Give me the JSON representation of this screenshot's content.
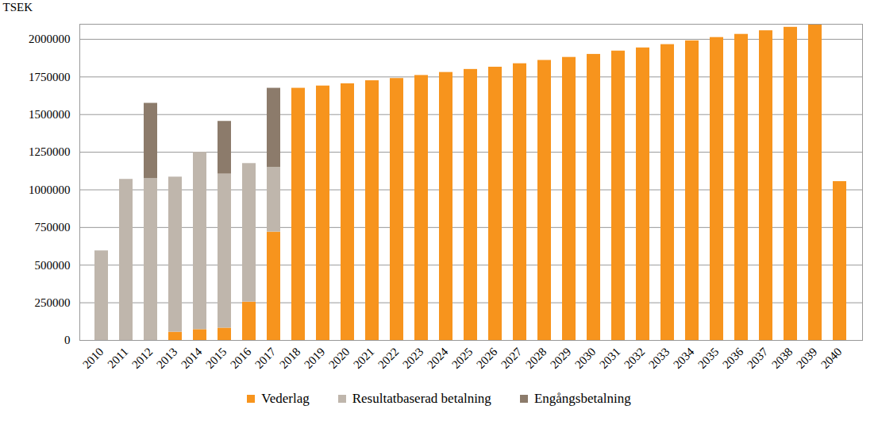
{
  "chart_data": {
    "type": "bar",
    "stacked": true,
    "grid": true,
    "legend": "bottom",
    "y_label": "TSEK",
    "categories": [
      "2010",
      "2011",
      "2012",
      "2013",
      "2014",
      "2015",
      "2016",
      "2017",
      "2018",
      "2019",
      "2020",
      "2021",
      "2022",
      "2023",
      "2024",
      "2025",
      "2026",
      "2027",
      "2028",
      "2029",
      "2030",
      "2031",
      "2032",
      "2033",
      "2034",
      "2035",
      "2036",
      "2037",
      "2038",
      "2039",
      "2040"
    ],
    "series": [
      {
        "name": "Vederlag",
        "color": "#F7941D",
        "values": [
          0,
          0,
          0,
          55000,
          72000,
          82000,
          255000,
          720000,
          1675000,
          1690000,
          1705000,
          1725000,
          1740000,
          1760000,
          1780000,
          1800000,
          1815000,
          1838000,
          1860000,
          1880000,
          1900000,
          1922000,
          1943000,
          1965000,
          1990000,
          2012000,
          2033000,
          2057000,
          2080000,
          2095000,
          1055000
        ]
      },
      {
        "name": "Resultatbaserad betalning",
        "color": "#BFB6AC",
        "values": [
          595000,
          1070000,
          1075000,
          1030000,
          1178000,
          1023000,
          920000,
          430000,
          0,
          0,
          0,
          0,
          0,
          0,
          0,
          0,
          0,
          0,
          0,
          0,
          0,
          0,
          0,
          0,
          0,
          0,
          0,
          0,
          0,
          0,
          0
        ]
      },
      {
        "name": "Engångsbetalning",
        "color": "#8C7B6B",
        "values": [
          0,
          0,
          500000,
          0,
          0,
          350000,
          0,
          525000,
          0,
          0,
          0,
          0,
          0,
          0,
          0,
          0,
          0,
          0,
          0,
          0,
          0,
          0,
          0,
          0,
          0,
          0,
          0,
          0,
          0,
          0,
          0
        ]
      }
    ],
    "ylim": [
      0,
      2100000
    ],
    "yticks": [
      0,
      250000,
      500000,
      750000,
      1000000,
      1250000,
      1500000,
      1750000,
      2000000
    ]
  }
}
